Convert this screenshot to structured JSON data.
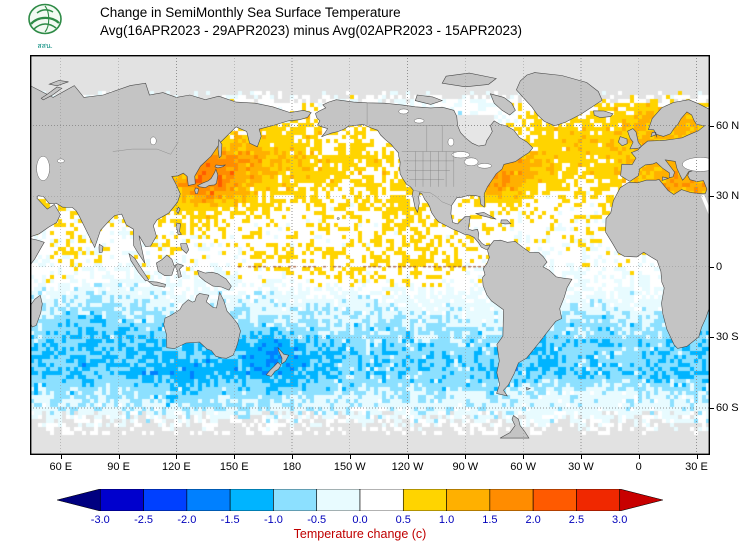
{
  "header": {
    "title_line1": "Change in SemiMonthly Sea Surface Temperature",
    "title_line2": "Avg(16APR2023 - 29APR2023) minus Avg(02APR2023 - 15APR2023)"
  },
  "logo": {
    "caption": "สสน."
  },
  "map": {
    "land_color": "#c4c4c4",
    "ice_color": "#e2e2e2",
    "grid_color": "#909090",
    "lat_labels": [
      {
        "text": "60 N",
        "lat": 60
      },
      {
        "text": "30 N",
        "lat": 30
      },
      {
        "text": "0",
        "lat": 0
      },
      {
        "text": "30 S",
        "lat": -30
      },
      {
        "text": "60 S",
        "lat": -60
      }
    ],
    "lon_labels": [
      {
        "text": "60 E",
        "lon": 60
      },
      {
        "text": "90 E",
        "lon": 90
      },
      {
        "text": "120 E",
        "lon": 120
      },
      {
        "text": "150 E",
        "lon": 150
      },
      {
        "text": "180",
        "lon": 180
      },
      {
        "text": "150 W",
        "lon": 210
      },
      {
        "text": "120 W",
        "lon": 240
      },
      {
        "text": "90 W",
        "lon": 270
      },
      {
        "text": "60 W",
        "lon": 300
      },
      {
        "text": "30 W",
        "lon": 330
      },
      {
        "text": "0",
        "lon": 360
      },
      {
        "text": "30 E",
        "lon": 390
      }
    ]
  },
  "colorbar": {
    "title": "Temperature change (c)",
    "title_color": "#c00000",
    "tick_color": "#0000bb",
    "tick_labels": [
      "-3.0",
      "-2.5",
      "-2.0",
      "-1.5",
      "-1.0",
      "-0.5",
      "0.0",
      "0.5",
      "1.0",
      "1.5",
      "2.0",
      "2.5",
      "3.0"
    ]
  },
  "chart_data": {
    "type": "heatmap",
    "title": "Change in SemiMonthly Sea Surface Temperature",
    "subtitle": "Avg(16APR2023 - 29APR2023) minus Avg(02APR2023 - 15APR2023)",
    "units": "°C",
    "lon_range": [
      44,
      397
    ],
    "lat_range": [
      -80,
      90
    ],
    "levels": [
      -3,
      -2.5,
      -2,
      -1.5,
      -1,
      -0.5,
      0,
      0.5,
      1,
      1.5,
      2,
      2.5,
      3
    ],
    "palette": [
      "#000080",
      "#0000cd",
      "#0040ff",
      "#0080ff",
      "#00b4ff",
      "#8ce0ff",
      "#e8fbff",
      "#ffffff",
      "#ffd400",
      "#ffb000",
      "#ff8c00",
      "#ff5a00",
      "#f02800",
      "#c80000"
    ],
    "grid_lon_start": 50,
    "grid_lon_step": 10,
    "grid_lat_start": 85,
    "grid_lat_step": -10,
    "anomaly_grid": [
      [
        0,
        0,
        0,
        0,
        0,
        0,
        0,
        0,
        0,
        0,
        0,
        0,
        0,
        0,
        0,
        0,
        0,
        0,
        0,
        0,
        0,
        0,
        0,
        0,
        0,
        0,
        0,
        0,
        0,
        0,
        0,
        0,
        0,
        0,
        0,
        0
      ],
      [
        0,
        0,
        0,
        0,
        0,
        0,
        0,
        0,
        0,
        0,
        0,
        0,
        0,
        0,
        0,
        0,
        0,
        0,
        0,
        0,
        0,
        0,
        0,
        0,
        0,
        0,
        0,
        0,
        0,
        0,
        0,
        0,
        0,
        0,
        0,
        0
      ],
      [
        0.2,
        0.2,
        0.1,
        0.1,
        0.1,
        0.1,
        0.1,
        0.1,
        0.1,
        0.2,
        0.2,
        0.2,
        0.3,
        0.4,
        0.5,
        0.4,
        0.3,
        0.2,
        0.1,
        0,
        0,
        0,
        0,
        0,
        0.2,
        0.4,
        0.5,
        0.5,
        0.6,
        0.7,
        0.8,
        1,
        1.1,
        1,
        0.9,
        0.6
      ],
      [
        0.2,
        0.2,
        0.2,
        0.2,
        0.2,
        0.2,
        0.2,
        0.2,
        0.2,
        0.4,
        0.7,
        0.8,
        0.8,
        0.7,
        0.6,
        0.5,
        0.5,
        0.5,
        0.4,
        0.2,
        0.1,
        0.1,
        0.1,
        0.2,
        0.3,
        0.5,
        0.7,
        0.8,
        0.7,
        0.7,
        0.9,
        1,
        1.1,
        1,
        1.1,
        0.9
      ],
      [
        0.2,
        0.2,
        0.2,
        0.2,
        0.2,
        0.3,
        0.4,
        0.8,
        1.5,
        1.8,
        1.6,
        1.3,
        1,
        0.9,
        0.8,
        0.7,
        0.6,
        0.6,
        0.6,
        0.4,
        0.3,
        0.3,
        0.3,
        0.5,
        1.2,
        1.5,
        1,
        0.8,
        0.7,
        0.7,
        0.9,
        1,
        1.1,
        1.2,
        1.3,
        1.2
      ],
      [
        0.3,
        0.3,
        0.3,
        0.3,
        0.4,
        0.6,
        0.8,
        1.2,
        1.9,
        2.1,
        1.5,
        0.9,
        0.8,
        0.7,
        0.7,
        0.6,
        0.6,
        0.6,
        0.5,
        0.4,
        0.4,
        0.4,
        0.6,
        1.5,
        1.7,
        1,
        0.6,
        0.6,
        0.5,
        0.6,
        0.7,
        0.8,
        1.2,
        1.4,
        1.5,
        1.4
      ],
      [
        0.6,
        0.4,
        0.4,
        0.3,
        0.3,
        0.3,
        0.5,
        0.6,
        0.8,
        0.7,
        0.6,
        0.5,
        0.5,
        0.4,
        0.4,
        0.4,
        0.4,
        0.4,
        0.5,
        0.6,
        0.5,
        0.4,
        0.4,
        0.5,
        0.5,
        0.4,
        0.4,
        0.3,
        0.3,
        0.4,
        0.4,
        0.5,
        0.6,
        0.7,
        0.8,
        0.7
      ],
      [
        0.3,
        0.3,
        0.3,
        0.2,
        0.2,
        0.3,
        0.3,
        0.4,
        0.4,
        0.3,
        0.3,
        0.3,
        0.3,
        0.3,
        0.3,
        0.3,
        0.4,
        0.4,
        0.4,
        0.5,
        0.4,
        0.3,
        0.3,
        0.3,
        0.3,
        0.2,
        0.2,
        0.2,
        0.3,
        0.3,
        0.3,
        0.3,
        0.4,
        0.3,
        0.3,
        0.3
      ],
      [
        0.2,
        0.3,
        0.3,
        0.2,
        0.2,
        0.2,
        0.2,
        0.2,
        0.2,
        0.2,
        0.3,
        0.4,
        0.5,
        0.5,
        0.5,
        0.5,
        0.5,
        0.5,
        0.5,
        0.6,
        0.6,
        0.5,
        0.4,
        0.3,
        0.2,
        0.1,
        0.1,
        0.2,
        0.2,
        0.2,
        0.2,
        0.3,
        0.3,
        0.2,
        0.2,
        0.2
      ],
      [
        0.1,
        0.1,
        0.1,
        0,
        0,
        0,
        0,
        0.1,
        0.1,
        0.1,
        0.1,
        0.2,
        0.2,
        0.3,
        0.3,
        0.3,
        0.3,
        0.3,
        0.4,
        0.4,
        0.4,
        0.3,
        0.2,
        0.1,
        0,
        0,
        0,
        0,
        0.1,
        0.1,
        0.1,
        0.1,
        0.1,
        0,
        0,
        0.1
      ],
      [
        -0.3,
        -0.5,
        -0.6,
        -0.6,
        -0.5,
        -0.4,
        -0.3,
        -0.2,
        -0.2,
        -0.2,
        -0.2,
        -0.2,
        -0.3,
        -0.3,
        -0.3,
        -0.3,
        -0.3,
        -0.3,
        -0.2,
        -0.2,
        -0.2,
        -0.2,
        -0.2,
        -0.1,
        -0.1,
        -0.2,
        -0.2,
        -0.2,
        -0.3,
        -0.3,
        -0.3,
        -0.2,
        -0.2,
        -0.3,
        -0.3,
        -0.3
      ],
      [
        -0.7,
        -0.9,
        -1,
        -1,
        -0.9,
        -0.8,
        -0.8,
        -0.7,
        -0.6,
        -0.6,
        -0.6,
        -0.7,
        -0.7,
        -0.6,
        -0.6,
        -0.6,
        -0.6,
        -0.6,
        -0.6,
        -0.5,
        -0.5,
        -0.5,
        -0.5,
        -0.4,
        -0.5,
        -0.6,
        -0.6,
        -0.6,
        -0.6,
        -0.7,
        -0.6,
        -0.5,
        -0.5,
        -0.6,
        -0.7,
        -0.7
      ],
      [
        -0.9,
        -1,
        -1.1,
        -1.1,
        -1,
        -1,
        -1,
        -0.9,
        -0.9,
        -0.9,
        -1.1,
        -1.3,
        -1.5,
        -1.2,
        -1,
        -0.9,
        -0.9,
        -0.8,
        -0.8,
        -0.8,
        -0.8,
        -0.8,
        -0.7,
        -0.7,
        -0.8,
        -0.9,
        -1,
        -0.9,
        -0.9,
        -0.9,
        -0.8,
        -0.8,
        -0.8,
        -0.9,
        -1,
        -0.9
      ],
      [
        -1,
        -1,
        -1.1,
        -1,
        -1,
        -1.1,
        -1.2,
        -1.3,
        -1.3,
        -1.2,
        -1.2,
        -1.3,
        -1.4,
        -1.3,
        -1.2,
        -1,
        -0.9,
        -0.9,
        -0.8,
        -0.8,
        -0.9,
        -0.9,
        -0.8,
        -1.1,
        -1.2,
        -1,
        -1.1,
        -1,
        -0.9,
        -0.9,
        -0.9,
        -0.9,
        -1,
        -1,
        -1,
        -1
      ],
      [
        -0.5,
        -0.6,
        -0.6,
        -0.5,
        -0.5,
        -0.6,
        -0.7,
        -0.7,
        -0.7,
        -0.7,
        -0.6,
        -0.6,
        -0.7,
        -0.7,
        -0.6,
        -0.5,
        -0.5,
        -0.4,
        -0.4,
        -0.4,
        -0.5,
        -0.5,
        -0.4,
        -0.4,
        -0.5,
        -0.3,
        -0.2,
        -0.2,
        -0.3,
        -0.3,
        -0.2,
        -0.3,
        -0.4,
        -0.4,
        -0.5,
        -0.5
      ],
      [
        -0.2,
        -0.2,
        -0.2,
        -0.2,
        -0.2,
        -0.2,
        -0.2,
        -0.2,
        -0.2,
        -0.2,
        -0.2,
        -0.2,
        -0.2,
        -0.2,
        -0.2,
        -0.2,
        -0.2,
        -0.2,
        -0.2,
        -0.2,
        -0.2,
        -0.2,
        -0.2,
        -0.2,
        -0.2,
        -0.2,
        -0.2,
        -0.2,
        -0.2,
        -0.2,
        -0.2,
        -0.2,
        -0.2,
        -0.2,
        -0.2,
        -0.2
      ],
      [
        0,
        0,
        0,
        0,
        0,
        0,
        0,
        0,
        0,
        0,
        0,
        0,
        0,
        0,
        0,
        0,
        0,
        0,
        0,
        0,
        0,
        0,
        0,
        0,
        0,
        0,
        0,
        0,
        0,
        0,
        0,
        0,
        0,
        0,
        0,
        0
      ],
      [
        0,
        0,
        0,
        0,
        0,
        0,
        0,
        0,
        0,
        0,
        0,
        0,
        0,
        0,
        0,
        0,
        0,
        0,
        0,
        0,
        0,
        0,
        0,
        0,
        0,
        0,
        0,
        0,
        0,
        0,
        0,
        0,
        0,
        0,
        0,
        0
      ]
    ]
  }
}
